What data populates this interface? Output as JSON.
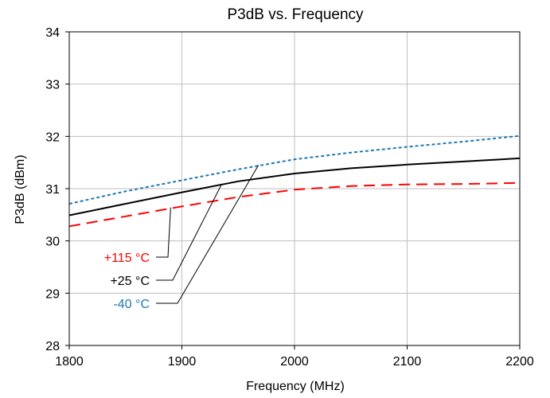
{
  "chart_data": {
    "type": "line",
    "title": "P3dB vs. Frequency",
    "xlabel": "Frequency (MHz)",
    "ylabel": "P3dB (dBm)",
    "xlim": [
      1800,
      2200
    ],
    "ylim": [
      28,
      34
    ],
    "xticks": [
      1800,
      1900,
      2000,
      2100,
      2200
    ],
    "yticks": [
      28,
      29,
      30,
      31,
      32,
      33,
      34
    ],
    "grid": "vertical",
    "series": [
      {
        "name": "+115 °C",
        "color": "#ff0000",
        "style": "long-dash",
        "x": [
          1800,
          1850,
          1900,
          1950,
          2000,
          2050,
          2100,
          2150,
          2200
        ],
        "y": [
          30.28,
          30.47,
          30.66,
          30.84,
          30.98,
          31.05,
          31.08,
          31.09,
          31.11
        ]
      },
      {
        "name": "+25 °C",
        "color": "#000000",
        "style": "solid",
        "x": [
          1800,
          1850,
          1900,
          1950,
          2000,
          2050,
          2100,
          2150,
          2200
        ],
        "y": [
          30.49,
          30.71,
          30.93,
          31.14,
          31.29,
          31.39,
          31.46,
          31.52,
          31.58
        ]
      },
      {
        "name": "-40 °C",
        "color": "#1f77b4",
        "style": "short-dash",
        "x": [
          1800,
          1850,
          1900,
          1950,
          2000,
          2050,
          2100,
          2150,
          2200
        ],
        "y": [
          30.71,
          30.95,
          31.16,
          31.37,
          31.56,
          31.69,
          31.8,
          31.9,
          32.01
        ]
      }
    ],
    "callouts": [
      {
        "text": "+115 °C",
        "color": "#ff0000",
        "target_x": 1890,
        "target_y": 30.64
      },
      {
        "text": "+25 °C",
        "color": "#000000",
        "target_x": 1935,
        "target_y": 31.07
      },
      {
        "text": "-40 °C",
        "color": "#1f77b4",
        "target_x": 1968,
        "target_y": 31.45
      }
    ]
  }
}
